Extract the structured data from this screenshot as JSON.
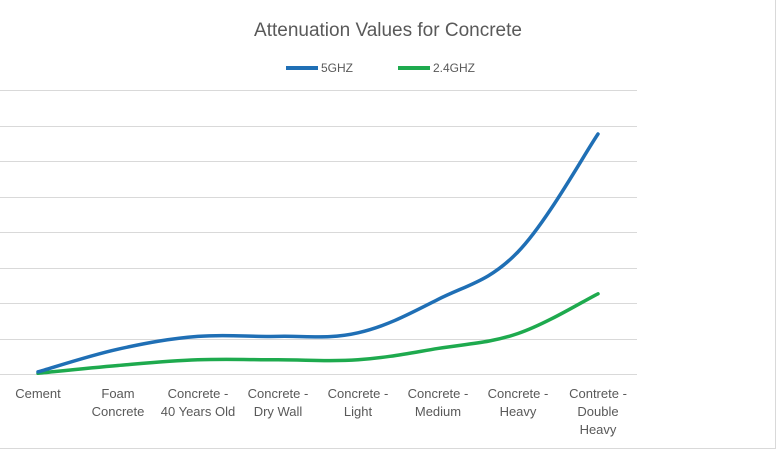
{
  "chart_data": {
    "type": "line",
    "title": "Attenuation Values for Concrete",
    "xlabel": "",
    "ylabel": "",
    "categories": [
      "Cement",
      "Foam Concrete",
      "Concrete - 40 Years Old",
      "Concrete - Dry Wall",
      "Concrete - Light",
      "Concrete - Medium",
      "Concrete - Heavy",
      "Contrete - Double Heavy"
    ],
    "category_lines": [
      [
        "Cement"
      ],
      [
        "Foam",
        "Concrete"
      ],
      [
        "Concrete -",
        "40 Years Old"
      ],
      [
        "Concrete -",
        "Dry Wall"
      ],
      [
        "Concrete -",
        "Light"
      ],
      [
        "Concrete -",
        "Medium"
      ],
      [
        "Concrete -",
        "Heavy"
      ],
      [
        "Contrete -",
        "Double",
        "Heavy"
      ]
    ],
    "series": [
      {
        "name": "5GHZ",
        "color": "#1f6fb5",
        "values": [
          0.3,
          3.5,
          5.3,
          5.3,
          5.8,
          10.5,
          17.2,
          33.8
        ]
      },
      {
        "name": "2.4GHZ",
        "color": "#1eaa4e",
        "values": [
          0.1,
          1.2,
          2.0,
          2.0,
          2.0,
          3.6,
          5.7,
          11.3
        ]
      }
    ],
    "ylim": [
      0,
      40
    ],
    "y_gridlines": [
      0,
      5,
      10,
      15,
      20,
      25,
      30,
      35,
      40
    ],
    "grid": true,
    "legend_position": "top"
  }
}
